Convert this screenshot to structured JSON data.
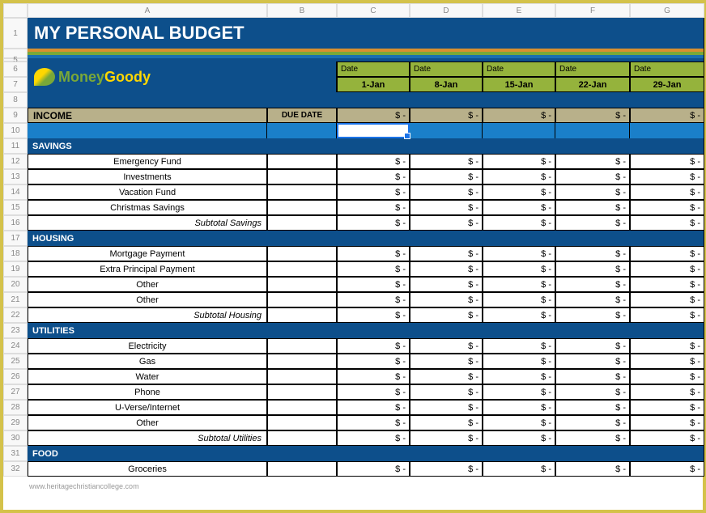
{
  "title": "MY PERSONAL BUDGET",
  "logo": {
    "part1": "Money",
    "part2": "Goody"
  },
  "columns": [
    "A",
    "B",
    "C",
    "D",
    "E",
    "F",
    "G"
  ],
  "date_label": "Date",
  "dates": [
    "1-Jan",
    "8-Jan",
    "15-Jan",
    "22-Jan",
    "29-Jan"
  ],
  "income_label": "INCOME",
  "due_date_label": "DUE DATE",
  "dash_value": "$ -",
  "sections": [
    {
      "name": "SAVINGS",
      "items": [
        "Emergency Fund",
        "Investments",
        "Vacation Fund",
        "Christmas Savings"
      ],
      "subtotal": "Subtotal Savings"
    },
    {
      "name": "HOUSING",
      "items": [
        "Mortgage Payment",
        "Extra Principal Payment",
        "Other",
        "Other"
      ],
      "subtotal": "Subtotal Housing"
    },
    {
      "name": "UTILITIES",
      "items": [
        "Electricity",
        "Gas",
        "Water",
        "Phone",
        "U-Verse/Internet",
        "Other"
      ],
      "subtotal": "Subtotal Utilities"
    },
    {
      "name": "FOOD",
      "items": [
        "Groceries"
      ],
      "subtotal": null
    }
  ],
  "row_numbers": [
    "1",
    "",
    "5",
    "6",
    "7",
    "8",
    "9",
    "10",
    "11",
    "12",
    "13",
    "14",
    "15",
    "16",
    "17",
    "18",
    "19",
    "20",
    "21",
    "22",
    "23",
    "24",
    "25",
    "26",
    "27",
    "28",
    "29",
    "30",
    "31",
    "32"
  ],
  "watermark": "www.heritagechristiancollege.com",
  "colors": {
    "navy": "#0d4f8b",
    "olive": "#95b33c",
    "tan": "#b8b08a",
    "lightblue": "#1a7fc9",
    "frame": "#d4c24a"
  }
}
